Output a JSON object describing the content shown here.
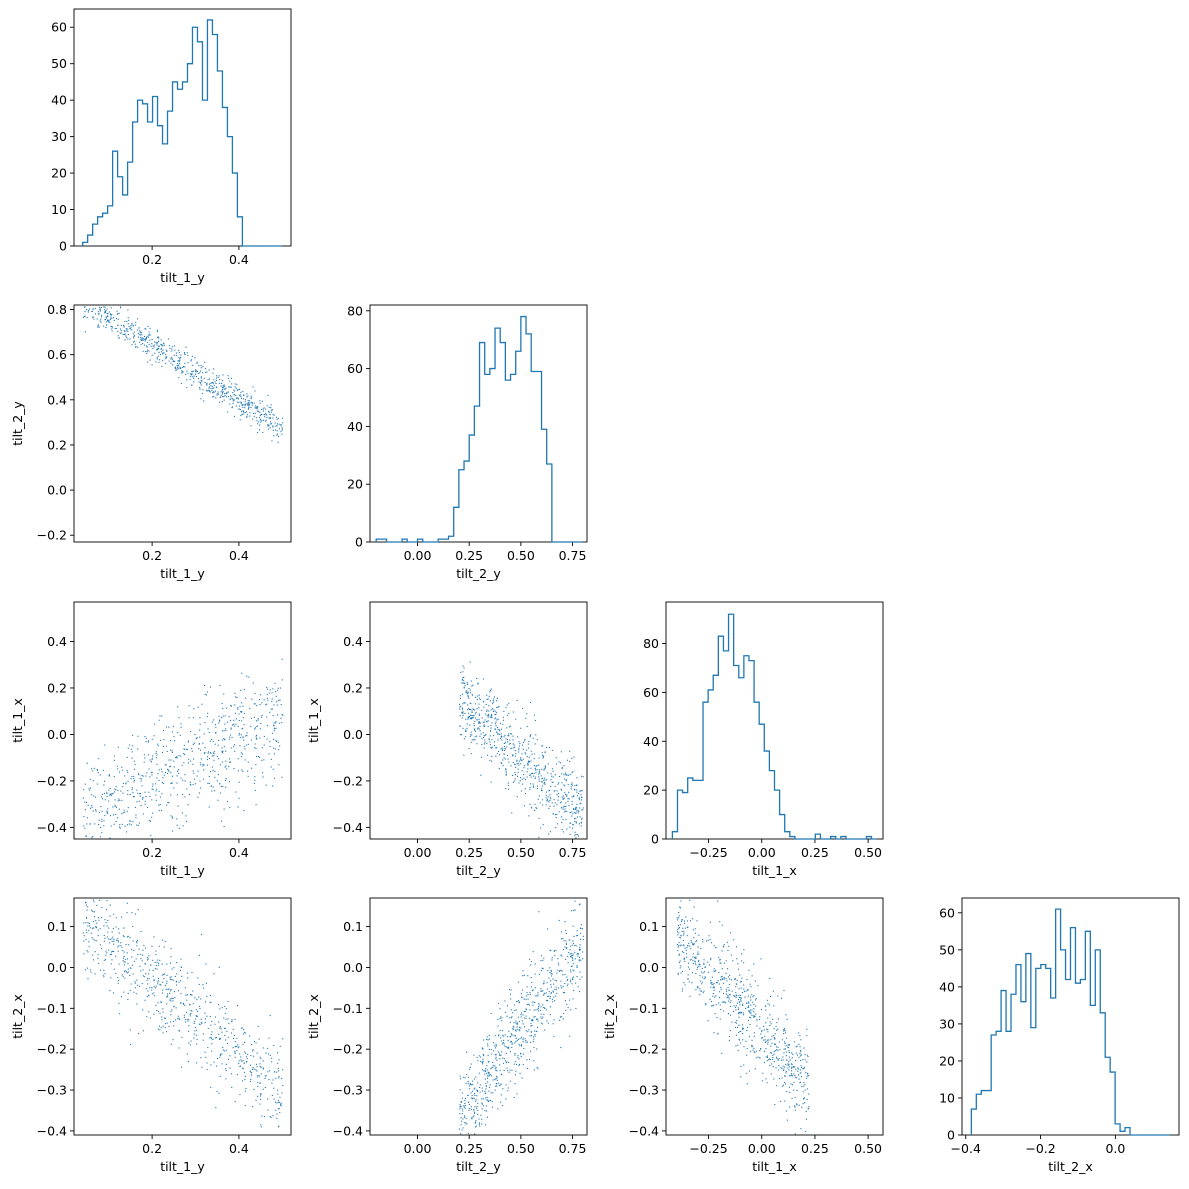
{
  "figure": {
    "type": "corner-plot",
    "color": "#1f77b4"
  },
  "variables": [
    "tilt_1_y",
    "tilt_2_y",
    "tilt_1_x",
    "tilt_2_x"
  ],
  "axes": {
    "tilt_1_y": {
      "range": [
        0.02,
        0.52
      ],
      "ticks": [
        0.2,
        0.4
      ],
      "tick_labels": [
        "0.2",
        "0.4"
      ]
    },
    "tilt_2_y": {
      "range": [
        -0.23,
        0.82
      ],
      "ticks": [
        -0.2,
        0.0,
        0.2,
        0.4,
        0.6,
        0.8
      ],
      "tick_labels": [
        "−0.2",
        "0.0",
        "0.2",
        "0.4",
        "0.6",
        "0.8"
      ],
      "x_ticks": [
        0.0,
        0.25,
        0.5,
        0.75
      ],
      "x_tick_labels": [
        "0.00",
        "0.25",
        "0.50",
        "0.75"
      ]
    },
    "tilt_1_x": {
      "range": [
        -0.45,
        0.57
      ],
      "ticks": [
        -0.4,
        -0.2,
        0.0,
        0.2,
        0.4
      ],
      "tick_labels": [
        "−0.4",
        "−0.2",
        "0.0",
        "0.2",
        "0.4"
      ],
      "x_ticks": [
        -0.25,
        0.0,
        0.25,
        0.5
      ],
      "x_tick_labels": [
        "−0.25",
        "0.00",
        "0.25",
        "0.50"
      ]
    },
    "tilt_2_x": {
      "range": [
        -0.41,
        0.17
      ],
      "ticks": [
        -0.4,
        -0.3,
        -0.2,
        -0.1,
        0.0,
        0.1
      ],
      "tick_labels": [
        "−0.4",
        "−0.3",
        "−0.2",
        "−0.1",
        "0.0",
        "0.1"
      ],
      "x_ticks": [
        -0.4,
        -0.2,
        0.0
      ],
      "x_tick_labels": [
        "−0.4",
        "−0.2",
        "0.0"
      ]
    }
  },
  "chart_data": [
    {
      "type": "histogram",
      "variable": "tilt_1_y",
      "row": 0,
      "col": 0,
      "xlabel": "tilt_1_y",
      "ylabel": "",
      "bin_edges": [
        0.04,
        0.5
      ],
      "bins": 40,
      "counts": [
        1,
        3,
        6,
        8,
        9,
        11,
        26,
        19,
        14,
        23,
        34,
        40,
        39,
        34,
        41,
        33,
        28,
        37,
        45,
        43,
        45,
        50,
        60,
        56,
        40,
        62,
        58,
        48,
        38,
        30,
        20,
        8,
        0,
        0,
        0,
        0,
        0,
        0,
        0,
        0
      ],
      "ylim": [
        0,
        65
      ],
      "yticks": [
        0,
        10,
        20,
        30,
        40,
        50,
        60
      ]
    },
    {
      "type": "histogram",
      "variable": "tilt_2_y",
      "row": 1,
      "col": 1,
      "xlabel": "tilt_2_y",
      "ylabel": "",
      "bin_edges": [
        -0.2,
        0.8
      ],
      "bins": 40,
      "counts": [
        1,
        1,
        0,
        0,
        0,
        1,
        0,
        0,
        1,
        0,
        0,
        0,
        1,
        1,
        2,
        12,
        25,
        28,
        37,
        47,
        69,
        58,
        60,
        74,
        69,
        56,
        58,
        66,
        78,
        72,
        59,
        59,
        39,
        27,
        0,
        0,
        0,
        0,
        0,
        0
      ],
      "ylim": [
        0,
        82
      ],
      "yticks": [
        0,
        20,
        40,
        60,
        80
      ]
    },
    {
      "type": "histogram",
      "variable": "tilt_1_x",
      "row": 2,
      "col": 2,
      "xlabel": "tilt_1_x",
      "ylabel": "",
      "bin_edges": [
        -0.42,
        0.54
      ],
      "bins": 40,
      "counts": [
        3,
        20,
        19,
        25,
        24,
        24,
        56,
        61,
        67,
        83,
        77,
        92,
        71,
        66,
        75,
        73,
        56,
        47,
        36,
        28,
        20,
        10,
        3,
        1,
        0,
        0,
        0,
        0,
        2,
        0,
        0,
        1,
        0,
        1,
        0,
        0,
        0,
        0,
        1,
        0
      ],
      "ylim": [
        0,
        97
      ],
      "yticks": [
        0,
        20,
        40,
        60,
        80
      ]
    },
    {
      "type": "histogram",
      "variable": "tilt_2_x",
      "row": 3,
      "col": 3,
      "xlabel": "tilt_2_x",
      "ylabel": "",
      "bin_edges": [
        -0.385,
        0.145
      ],
      "bins": 40,
      "counts": [
        7,
        11,
        12,
        12,
        27,
        28,
        39,
        28,
        38,
        46,
        36,
        49,
        29,
        45,
        46,
        45,
        37,
        61,
        50,
        42,
        56,
        41,
        42,
        55,
        35,
        50,
        33,
        21,
        17,
        3,
        1,
        2,
        0,
        0,
        0,
        0,
        0,
        0,
        0,
        0
      ],
      "ylim": [
        0,
        64
      ],
      "yticks": [
        0,
        10,
        20,
        30,
        40,
        50,
        60
      ]
    },
    {
      "type": "scatter",
      "row": 1,
      "col": 0,
      "x_variable": "tilt_1_y",
      "y_variable": "tilt_2_y",
      "xlabel": "tilt_1_y",
      "ylabel": "tilt_2_y",
      "trend": {
        "slope": -1.2,
        "intercept": 0.88,
        "noise": 0.035,
        "x_dist": [
          0.04,
          0.5
        ]
      }
    },
    {
      "type": "scatter",
      "row": 2,
      "col": 0,
      "x_variable": "tilt_1_y",
      "y_variable": "tilt_1_x",
      "xlabel": "tilt_1_y",
      "ylabel": "tilt_1_x",
      "trend": {
        "slope": 0.9,
        "intercept": -0.38,
        "noise": 0.12,
        "x_dist": [
          0.04,
          0.5
        ]
      }
    },
    {
      "type": "scatter",
      "row": 2,
      "col": 1,
      "x_variable": "tilt_2_y",
      "y_variable": "tilt_1_x",
      "xlabel": "tilt_2_y",
      "ylabel": "tilt_1_x",
      "trend": {
        "slope": -0.85,
        "intercept": 0.32,
        "noise": 0.09,
        "x_dist": [
          0.2,
          0.8
        ]
      }
    },
    {
      "type": "scatter",
      "row": 3,
      "col": 0,
      "x_variable": "tilt_1_y",
      "y_variable": "tilt_2_x",
      "xlabel": "tilt_1_y",
      "ylabel": "tilt_2_x",
      "trend": {
        "slope": -0.9,
        "intercept": 0.15,
        "noise": 0.06,
        "x_dist": [
          0.04,
          0.5
        ]
      }
    },
    {
      "type": "scatter",
      "row": 3,
      "col": 1,
      "x_variable": "tilt_2_y",
      "y_variable": "tilt_2_x",
      "xlabel": "tilt_2_y",
      "ylabel": "tilt_2_x",
      "trend": {
        "slope": 0.72,
        "intercept": -0.51,
        "noise": 0.06,
        "x_dist": [
          0.2,
          0.8
        ]
      }
    },
    {
      "type": "scatter",
      "row": 3,
      "col": 2,
      "x_variable": "tilt_1_x",
      "y_variable": "tilt_2_x",
      "xlabel": "tilt_1_x",
      "ylabel": "tilt_2_x",
      "trend": {
        "slope": -0.6,
        "intercept": -0.16,
        "noise": 0.06,
        "x_dist": [
          -0.4,
          0.22
        ]
      }
    }
  ]
}
